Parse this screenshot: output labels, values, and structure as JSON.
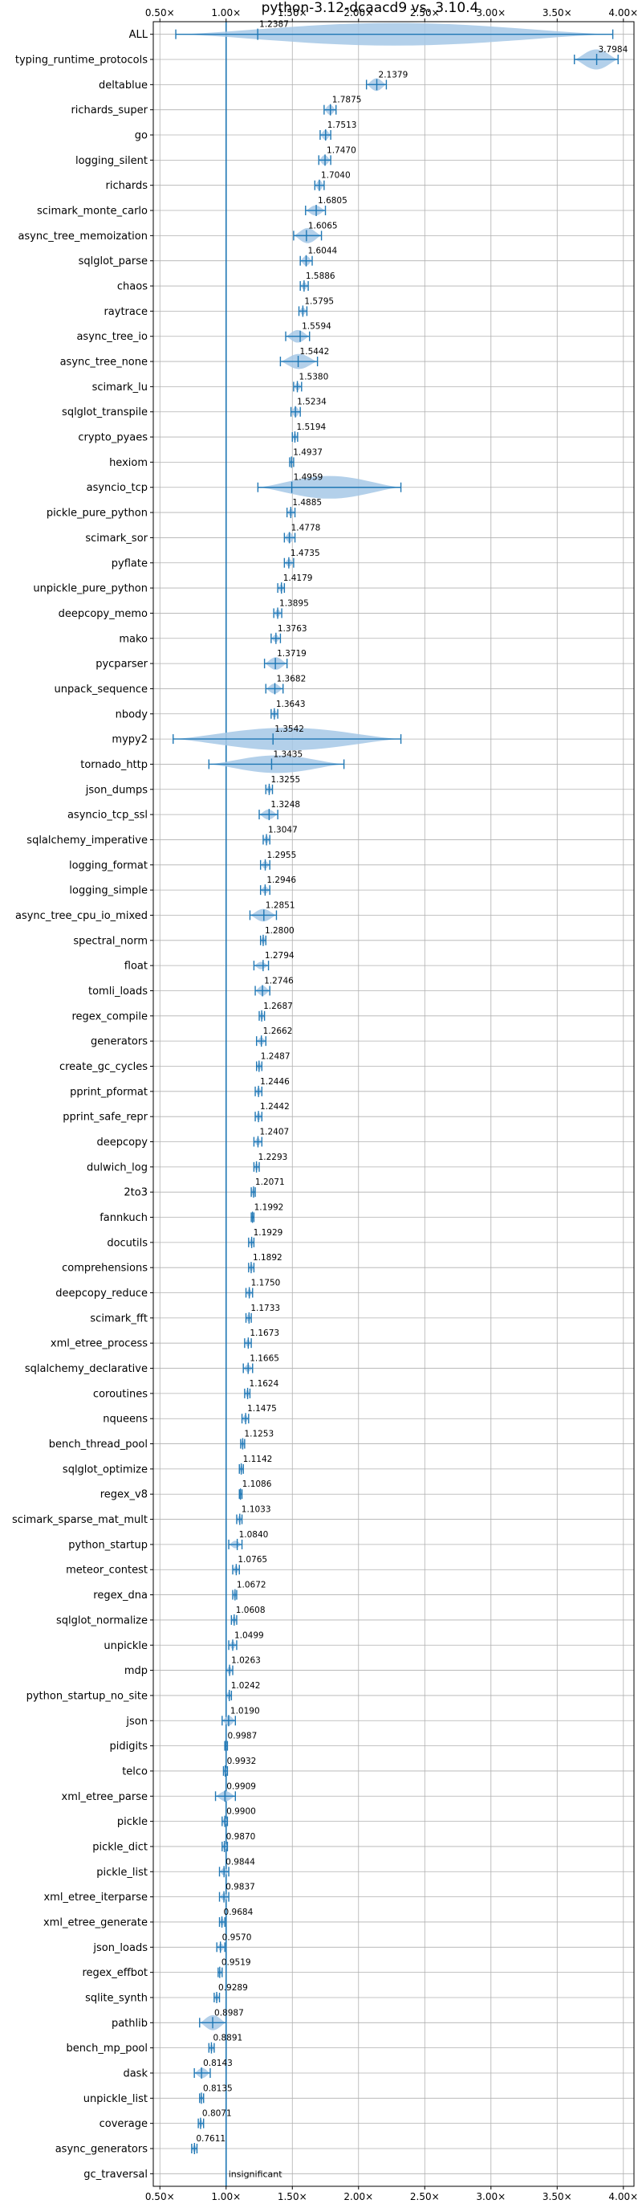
{
  "chart_data": {
    "type": "violin",
    "title": "python-3.12-dcaacd9 vs. 3.10.4",
    "xlabel": "",
    "ylabel": "",
    "xlim": [
      0.45,
      4.08
    ],
    "x_ticks": [
      0.5,
      1.0,
      1.5,
      2.0,
      2.5,
      3.0,
      3.5,
      4.0
    ],
    "x_tick_labels": [
      "0.50×",
      "1.00×",
      "1.50×",
      "2.00×",
      "2.50×",
      "3.00×",
      "3.50×",
      "4.00×"
    ],
    "reference_line": 1.0,
    "grid": true,
    "colors": {
      "accent": "#1f77b4",
      "violin": "#a6c8e6",
      "grid": "#b0b0b0",
      "axis": "#000000"
    },
    "benchmarks": [
      {
        "name": "ALL",
        "value": 1.2387,
        "label": "1.2387",
        "low": 0.62,
        "high": 3.92,
        "width": 0.9
      },
      {
        "name": "typing_runtime_protocols",
        "value": 3.7984,
        "label": "3.7984",
        "low": 3.63,
        "high": 3.96,
        "width": 0.8
      },
      {
        "name": "deltablue",
        "value": 2.1379,
        "label": "2.1379",
        "low": 2.06,
        "high": 2.21,
        "width": 0.5
      },
      {
        "name": "richards_super",
        "value": 1.7875,
        "label": "1.7875",
        "low": 1.74,
        "high": 1.83,
        "width": 0.4
      },
      {
        "name": "go",
        "value": 1.7513,
        "label": "1.7513",
        "low": 1.71,
        "high": 1.79,
        "width": 0.4
      },
      {
        "name": "logging_silent",
        "value": 1.747,
        "label": "1.7470",
        "low": 1.7,
        "high": 1.79,
        "width": 0.4
      },
      {
        "name": "richards",
        "value": 1.704,
        "label": "1.7040",
        "low": 1.67,
        "high": 1.74,
        "width": 0.4
      },
      {
        "name": "scimark_monte_carlo",
        "value": 1.6805,
        "label": "1.6805",
        "low": 1.6,
        "high": 1.75,
        "width": 0.4
      },
      {
        "name": "async_tree_memoization",
        "value": 1.6065,
        "label": "1.6065",
        "low": 1.51,
        "high": 1.72,
        "width": 0.6
      },
      {
        "name": "sqlglot_parse",
        "value": 1.6044,
        "label": "1.6044",
        "low": 1.56,
        "high": 1.65,
        "width": 0.4
      },
      {
        "name": "chaos",
        "value": 1.5886,
        "label": "1.5886",
        "low": 1.56,
        "high": 1.62,
        "width": 0.3
      },
      {
        "name": "raytrace",
        "value": 1.5795,
        "label": "1.5795",
        "low": 1.55,
        "high": 1.61,
        "width": 0.3
      },
      {
        "name": "async_tree_io",
        "value": 1.5594,
        "label": "1.5594",
        "low": 1.45,
        "high": 1.63,
        "width": 0.5
      },
      {
        "name": "async_tree_none",
        "value": 1.5442,
        "label": "1.5442",
        "low": 1.41,
        "high": 1.69,
        "width": 0.6
      },
      {
        "name": "scimark_lu",
        "value": 1.538,
        "label": "1.5380",
        "low": 1.51,
        "high": 1.57,
        "width": 0.3
      },
      {
        "name": "sqlglot_transpile",
        "value": 1.5234,
        "label": "1.5234",
        "low": 1.49,
        "high": 1.56,
        "width": 0.4
      },
      {
        "name": "crypto_pyaes",
        "value": 1.5194,
        "label": "1.5194",
        "low": 1.5,
        "high": 1.54,
        "width": 0.3
      },
      {
        "name": "hexiom",
        "value": 1.4937,
        "label": "1.4937",
        "low": 1.48,
        "high": 1.51,
        "width": 0.2
      },
      {
        "name": "asyncio_tcp",
        "value": 1.4959,
        "label": "1.4959",
        "low": 1.24,
        "high": 2.32,
        "width": 0.9
      },
      {
        "name": "pickle_pure_python",
        "value": 1.4885,
        "label": "1.4885",
        "low": 1.46,
        "high": 1.52,
        "width": 0.3
      },
      {
        "name": "scimark_sor",
        "value": 1.4778,
        "label": "1.4778",
        "low": 1.44,
        "high": 1.52,
        "width": 0.4
      },
      {
        "name": "pyflate",
        "value": 1.4735,
        "label": "1.4735",
        "low": 1.44,
        "high": 1.51,
        "width": 0.3
      },
      {
        "name": "unpickle_pure_python",
        "value": 1.4179,
        "label": "1.4179",
        "low": 1.39,
        "high": 1.44,
        "width": 0.3
      },
      {
        "name": "deepcopy_memo",
        "value": 1.3895,
        "label": "1.3895",
        "low": 1.36,
        "high": 1.42,
        "width": 0.3
      },
      {
        "name": "mako",
        "value": 1.3763,
        "label": "1.3763",
        "low": 1.34,
        "high": 1.41,
        "width": 0.3
      },
      {
        "name": "pycparser",
        "value": 1.3719,
        "label": "1.3719",
        "low": 1.29,
        "high": 1.46,
        "width": 0.5
      },
      {
        "name": "unpack_sequence",
        "value": 1.3682,
        "label": "1.3682",
        "low": 1.3,
        "high": 1.43,
        "width": 0.4
      },
      {
        "name": "nbody",
        "value": 1.3643,
        "label": "1.3643",
        "low": 1.34,
        "high": 1.39,
        "width": 0.3
      },
      {
        "name": "mypy2",
        "value": 1.3542,
        "label": "1.3542",
        "low": 0.6,
        "high": 2.32,
        "width": 0.9
      },
      {
        "name": "tornado_http",
        "value": 1.3435,
        "label": "1.3435",
        "low": 0.87,
        "high": 1.89,
        "width": 0.7
      },
      {
        "name": "json_dumps",
        "value": 1.3255,
        "label": "1.3255",
        "low": 1.3,
        "high": 1.35,
        "width": 0.3
      },
      {
        "name": "asyncio_tcp_ssl",
        "value": 1.3248,
        "label": "1.3248",
        "low": 1.25,
        "high": 1.39,
        "width": 0.4
      },
      {
        "name": "sqlalchemy_imperative",
        "value": 1.3047,
        "label": "1.3047",
        "low": 1.28,
        "high": 1.33,
        "width": 0.3
      },
      {
        "name": "logging_format",
        "value": 1.2955,
        "label": "1.2955",
        "low": 1.26,
        "high": 1.33,
        "width": 0.3
      },
      {
        "name": "logging_simple",
        "value": 1.2946,
        "label": "1.2946",
        "low": 1.26,
        "high": 1.33,
        "width": 0.3
      },
      {
        "name": "async_tree_cpu_io_mixed",
        "value": 1.2851,
        "label": "1.2851",
        "low": 1.18,
        "high": 1.38,
        "width": 0.5
      },
      {
        "name": "spectral_norm",
        "value": 1.28,
        "label": "1.2800",
        "low": 1.26,
        "high": 1.3,
        "width": 0.3
      },
      {
        "name": "float",
        "value": 1.2794,
        "label": "1.2794",
        "low": 1.21,
        "high": 1.32,
        "width": 0.3
      },
      {
        "name": "tomli_loads",
        "value": 1.2746,
        "label": "1.2746",
        "low": 1.22,
        "high": 1.33,
        "width": 0.4
      },
      {
        "name": "regex_compile",
        "value": 1.2687,
        "label": "1.2687",
        "low": 1.25,
        "high": 1.29,
        "width": 0.3
      },
      {
        "name": "generators",
        "value": 1.2662,
        "label": "1.2662",
        "low": 1.23,
        "high": 1.3,
        "width": 0.3
      },
      {
        "name": "create_gc_cycles",
        "value": 1.2487,
        "label": "1.2487",
        "low": 1.23,
        "high": 1.27,
        "width": 0.3
      },
      {
        "name": "pprint_pformat",
        "value": 1.2446,
        "label": "1.2446",
        "low": 1.22,
        "high": 1.27,
        "width": 0.3
      },
      {
        "name": "pprint_safe_repr",
        "value": 1.2442,
        "label": "1.2442",
        "low": 1.22,
        "high": 1.27,
        "width": 0.3
      },
      {
        "name": "deepcopy",
        "value": 1.2407,
        "label": "1.2407",
        "low": 1.21,
        "high": 1.27,
        "width": 0.3
      },
      {
        "name": "dulwich_log",
        "value": 1.2293,
        "label": "1.2293",
        "low": 1.21,
        "high": 1.25,
        "width": 0.3
      },
      {
        "name": "2to3",
        "value": 1.2071,
        "label": "1.2071",
        "low": 1.19,
        "high": 1.22,
        "width": 0.3
      },
      {
        "name": "fannkuch",
        "value": 1.1992,
        "label": "1.1992",
        "low": 1.19,
        "high": 1.21,
        "width": 0.2
      },
      {
        "name": "docutils",
        "value": 1.1929,
        "label": "1.1929",
        "low": 1.17,
        "high": 1.21,
        "width": 0.3
      },
      {
        "name": "comprehensions",
        "value": 1.1892,
        "label": "1.1892",
        "low": 1.17,
        "high": 1.21,
        "width": 0.3
      },
      {
        "name": "deepcopy_reduce",
        "value": 1.175,
        "label": "1.1750",
        "low": 1.15,
        "high": 1.2,
        "width": 0.3
      },
      {
        "name": "scimark_fft",
        "value": 1.1733,
        "label": "1.1733",
        "low": 1.15,
        "high": 1.19,
        "width": 0.3
      },
      {
        "name": "xml_etree_process",
        "value": 1.1673,
        "label": "1.1673",
        "low": 1.14,
        "high": 1.19,
        "width": 0.3
      },
      {
        "name": "sqlalchemy_declarative",
        "value": 1.1665,
        "label": "1.1665",
        "low": 1.13,
        "high": 1.2,
        "width": 0.3
      },
      {
        "name": "coroutines",
        "value": 1.1624,
        "label": "1.1624",
        "low": 1.14,
        "high": 1.18,
        "width": 0.3
      },
      {
        "name": "nqueens",
        "value": 1.1475,
        "label": "1.1475",
        "low": 1.12,
        "high": 1.17,
        "width": 0.3
      },
      {
        "name": "bench_thread_pool",
        "value": 1.1253,
        "label": "1.1253",
        "low": 1.11,
        "high": 1.14,
        "width": 0.3
      },
      {
        "name": "sqlglot_optimize",
        "value": 1.1142,
        "label": "1.1142",
        "low": 1.1,
        "high": 1.13,
        "width": 0.3
      },
      {
        "name": "regex_v8",
        "value": 1.1086,
        "label": "1.1086",
        "low": 1.1,
        "high": 1.12,
        "width": 0.2
      },
      {
        "name": "scimark_sparse_mat_mult",
        "value": 1.1033,
        "label": "1.1033",
        "low": 1.08,
        "high": 1.12,
        "width": 0.3
      },
      {
        "name": "python_startup",
        "value": 1.084,
        "label": "1.0840",
        "low": 1.02,
        "high": 1.12,
        "width": 0.3
      },
      {
        "name": "meteor_contest",
        "value": 1.0765,
        "label": "1.0765",
        "low": 1.05,
        "high": 1.1,
        "width": 0.3
      },
      {
        "name": "regex_dna",
        "value": 1.0672,
        "label": "1.0672",
        "low": 1.05,
        "high": 1.08,
        "width": 0.3
      },
      {
        "name": "sqlglot_normalize",
        "value": 1.0608,
        "label": "1.0608",
        "low": 1.04,
        "high": 1.08,
        "width": 0.3
      },
      {
        "name": "unpickle",
        "value": 1.0499,
        "label": "1.0499",
        "low": 1.02,
        "high": 1.08,
        "width": 0.3
      },
      {
        "name": "mdp",
        "value": 1.0263,
        "label": "1.0263",
        "low": 1.0,
        "high": 1.05,
        "width": 0.3
      },
      {
        "name": "python_startup_no_site",
        "value": 1.0242,
        "label": "1.0242",
        "low": 1.0,
        "high": 1.04,
        "width": 0.3
      },
      {
        "name": "json",
        "value": 1.019,
        "label": "1.0190",
        "low": 0.97,
        "high": 1.07,
        "width": 0.4
      },
      {
        "name": "pidigits",
        "value": 0.9987,
        "label": "0.9987",
        "low": 0.99,
        "high": 1.01,
        "width": 0.2
      },
      {
        "name": "telco",
        "value": 0.9932,
        "label": "0.9932",
        "low": 0.98,
        "high": 1.01,
        "width": 0.3
      },
      {
        "name": "xml_etree_parse",
        "value": 0.9909,
        "label": "0.9909",
        "low": 0.92,
        "high": 1.07,
        "width": 0.4
      },
      {
        "name": "pickle",
        "value": 0.99,
        "label": "0.9900",
        "low": 0.97,
        "high": 1.01,
        "width": 0.3
      },
      {
        "name": "pickle_dict",
        "value": 0.987,
        "label": "0.9870",
        "low": 0.97,
        "high": 1.01,
        "width": 0.3
      },
      {
        "name": "pickle_list",
        "value": 0.9844,
        "label": "0.9844",
        "low": 0.95,
        "high": 1.02,
        "width": 0.3
      },
      {
        "name": "xml_etree_iterparse",
        "value": 0.9837,
        "label": "0.9837",
        "low": 0.95,
        "high": 1.02,
        "width": 0.3
      },
      {
        "name": "xml_etree_generate",
        "value": 0.9684,
        "label": "0.9684",
        "low": 0.95,
        "high": 0.99,
        "width": 0.3
      },
      {
        "name": "json_loads",
        "value": 0.957,
        "label": "0.9570",
        "low": 0.93,
        "high": 0.99,
        "width": 0.3
      },
      {
        "name": "regex_effbot",
        "value": 0.9519,
        "label": "0.9519",
        "low": 0.94,
        "high": 0.97,
        "width": 0.2
      },
      {
        "name": "sqlite_synth",
        "value": 0.9289,
        "label": "0.9289",
        "low": 0.91,
        "high": 0.95,
        "width": 0.3
      },
      {
        "name": "pathlib",
        "value": 0.8987,
        "label": "0.8987",
        "low": 0.8,
        "high": 1.0,
        "width": 0.6
      },
      {
        "name": "bench_mp_pool",
        "value": 0.8891,
        "label": "0.8891",
        "low": 0.87,
        "high": 0.91,
        "width": 0.3
      },
      {
        "name": "dask",
        "value": 0.8143,
        "label": "0.8143",
        "low": 0.76,
        "high": 0.88,
        "width": 0.4
      },
      {
        "name": "unpickle_list",
        "value": 0.8135,
        "label": "0.8135",
        "low": 0.8,
        "high": 0.83,
        "width": 0.2
      },
      {
        "name": "coverage",
        "value": 0.8071,
        "label": "0.8071",
        "low": 0.79,
        "high": 0.83,
        "width": 0.3
      },
      {
        "name": "async_generators",
        "value": 0.7611,
        "label": "0.7611",
        "low": 0.74,
        "high": 0.78,
        "width": 0.3
      },
      {
        "name": "gc_traversal",
        "value": null,
        "label": "insignificant",
        "low": null,
        "high": null,
        "width": 0
      }
    ]
  }
}
